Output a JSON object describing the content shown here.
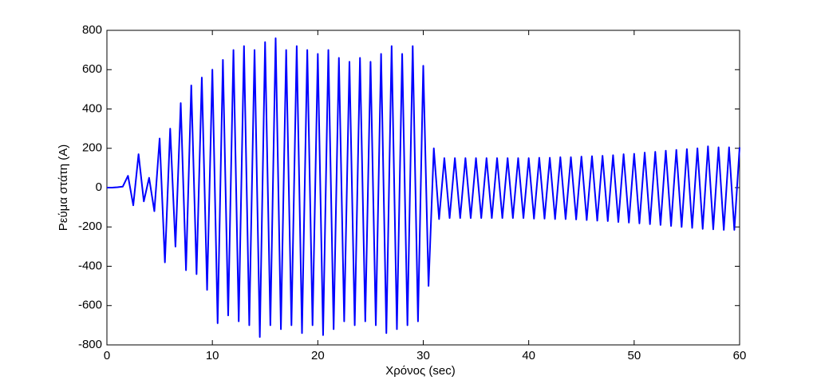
{
  "chart_data": {
    "type": "line",
    "x_label": "Χρόνος (sec)",
    "y_label": "Ρεύμα  στάτη (A)",
    "xlim": [
      0,
      60
    ],
    "xticks": [
      0,
      10,
      20,
      30,
      40,
      50,
      60
    ],
    "ylim": [
      -800,
      800
    ],
    "yticks": [
      -800,
      -600,
      -400,
      -200,
      0,
      200,
      400,
      600,
      800
    ],
    "grid": false,
    "series": [
      {
        "color": "#0000ff",
        "x": [
          0,
          0.5,
          1,
          1.5,
          2,
          2.5,
          3,
          3.5,
          4,
          4.5,
          5,
          5.5,
          6,
          6.5,
          7,
          7.5,
          8,
          8.5,
          9,
          9.5,
          10,
          10.5,
          11,
          11.5,
          12,
          12.5,
          13,
          13.5,
          14,
          14.5,
          15,
          15.5,
          16,
          16.5,
          17,
          17.5,
          18,
          18.5,
          19,
          19.5,
          20,
          20.5,
          21,
          21.5,
          22,
          22.5,
          23,
          23.5,
          24,
          24.5,
          25,
          25.5,
          26,
          26.5,
          27,
          27.5,
          28,
          28.5,
          29,
          29.5,
          30,
          30.5,
          31,
          31.5,
          32,
          32.5,
          33,
          33.5,
          34,
          34.5,
          35,
          35.5,
          36,
          36.5,
          37,
          37.5,
          38,
          38.5,
          39,
          39.5,
          40,
          40.5,
          41,
          41.5,
          42,
          42.5,
          43,
          43.5,
          44,
          44.5,
          45,
          45.5,
          46,
          46.5,
          47,
          47.5,
          48,
          48.5,
          49,
          49.5,
          50,
          50.5,
          51,
          51.5,
          52,
          52.5,
          53,
          53.5,
          54,
          54.5,
          55,
          55.5,
          56,
          56.5,
          57,
          57.5,
          58,
          58.5,
          59,
          59.5,
          60
        ],
        "values": [
          0,
          0,
          2,
          5,
          60,
          -90,
          170,
          -70,
          50,
          -120,
          250,
          -380,
          300,
          -300,
          430,
          -420,
          520,
          -440,
          560,
          -520,
          600,
          -690,
          650,
          -650,
          700,
          -680,
          720,
          -700,
          700,
          -760,
          740,
          -700,
          760,
          -720,
          700,
          -700,
          720,
          -740,
          700,
          -700,
          680,
          -750,
          700,
          -720,
          660,
          -680,
          640,
          -700,
          660,
          -680,
          640,
          -700,
          680,
          -740,
          720,
          -720,
          680,
          -700,
          720,
          -680,
          620,
          -500,
          200,
          -160,
          150,
          -155,
          150,
          -155,
          150,
          -155,
          150,
          -155,
          150,
          -155,
          150,
          -155,
          150,
          -155,
          150,
          -155,
          150,
          -158,
          152,
          -158,
          152,
          -160,
          155,
          -160,
          155,
          -162,
          158,
          -165,
          160,
          -168,
          162,
          -170,
          165,
          -175,
          170,
          -178,
          172,
          -182,
          178,
          -186,
          182,
          -190,
          188,
          -195,
          192,
          -200,
          196,
          -205,
          200,
          -210,
          210,
          -212,
          205,
          -215,
          205,
          -215,
          205
        ]
      }
    ]
  }
}
